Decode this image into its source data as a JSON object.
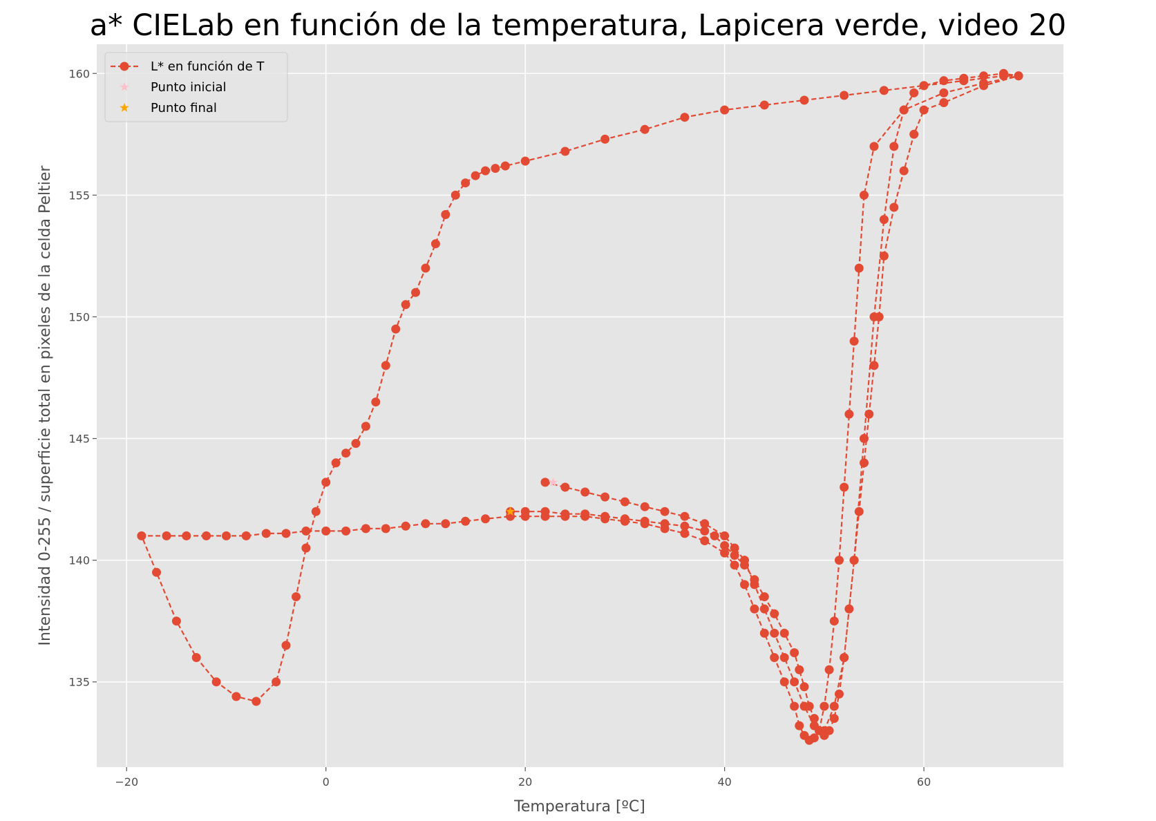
{
  "chart_data": {
    "type": "line",
    "title": "a* CIELab en función de la temperatura, Lapicera verde, video 20",
    "xlabel": "Temperatura [ºC]",
    "ylabel": "Intensidad 0-255 / superficie total en pixeles de la celda Peltier",
    "xlim": [
      -23,
      74
    ],
    "ylim": [
      131.5,
      161.2
    ],
    "xticks": [
      -20,
      0,
      20,
      40,
      60
    ],
    "yticks": [
      135,
      140,
      145,
      150,
      155,
      160
    ],
    "xtick_labels": [
      "−20",
      "0",
      "20",
      "40",
      "60"
    ],
    "ytick_labels": [
      "135",
      "140",
      "145",
      "150",
      "155",
      "160"
    ],
    "grid": true,
    "legend_position": "upper-left",
    "series": [
      {
        "name": "L* en función de T",
        "color": "#e24a33",
        "style": "dashed line with circle markers",
        "x": [
          22,
          24,
          26,
          28,
          30,
          32,
          34,
          36,
          38,
          40,
          41,
          42,
          43,
          44,
          45,
          46,
          47,
          48,
          49,
          50,
          51,
          52,
          53,
          54,
          55,
          56,
          57,
          58,
          59,
          60,
          62,
          64,
          66,
          68,
          69.5,
          66,
          62,
          58,
          55,
          54,
          53.5,
          53,
          52.5,
          52,
          51.5,
          51,
          50.5,
          50,
          49.5,
          49,
          48.5,
          48,
          47.5,
          47,
          46,
          45,
          44,
          43,
          42,
          41,
          40,
          38,
          36,
          34,
          32,
          30,
          28,
          26,
          24,
          22,
          20,
          18.5,
          16,
          14,
          12,
          10,
          8,
          6,
          4,
          2,
          0,
          -2,
          -4,
          -6,
          -8,
          -10,
          -12,
          -14,
          -16,
          -18.5,
          -17,
          -15,
          -13,
          -11,
          -9,
          -7,
          -5,
          -4,
          -3,
          -2,
          -1,
          0,
          1,
          2,
          3,
          4,
          5,
          6,
          7,
          8,
          9,
          10,
          11,
          12,
          13,
          14,
          15,
          16,
          17,
          18,
          20,
          24,
          28,
          32,
          36,
          40,
          44,
          48,
          52,
          56,
          60,
          64,
          68,
          69.5,
          66,
          62,
          60,
          59,
          58,
          57,
          56,
          55.5,
          55,
          54.5,
          54,
          53.5,
          53,
          52.5,
          52,
          51.5,
          51,
          50.5,
          50,
          49.5,
          49,
          48.5,
          48,
          47.5,
          47,
          46,
          45,
          44,
          43,
          42,
          41,
          40,
          39,
          38,
          36,
          34,
          32,
          30,
          28,
          26,
          24,
          22,
          20,
          18.5
        ],
        "y": [
          143.2,
          143.0,
          142.8,
          142.6,
          142.4,
          142.2,
          142.0,
          141.8,
          141.5,
          141.0,
          140.5,
          140.0,
          139.0,
          138.0,
          137.0,
          136.0,
          135.0,
          134.0,
          133.2,
          133.0,
          134.0,
          136.0,
          140.0,
          145.0,
          150.0,
          154.0,
          157.0,
          158.5,
          159.2,
          159.5,
          159.7,
          159.8,
          159.9,
          160.0,
          159.9,
          159.6,
          159.2,
          158.5,
          157.0,
          155.0,
          152.0,
          149.0,
          146.0,
          143.0,
          140.0,
          137.5,
          135.5,
          134.0,
          133.0,
          132.7,
          132.6,
          132.8,
          133.2,
          134.0,
          135.0,
          136.0,
          137.0,
          138.0,
          139.0,
          139.8,
          140.3,
          140.8,
          141.1,
          141.3,
          141.5,
          141.6,
          141.7,
          141.8,
          141.8,
          141.8,
          141.8,
          141.8,
          141.7,
          141.6,
          141.5,
          141.5,
          141.4,
          141.3,
          141.3,
          141.2,
          141.2,
          141.2,
          141.1,
          141.1,
          141.0,
          141.0,
          141.0,
          141.0,
          141.0,
          141.0,
          139.5,
          137.5,
          136.0,
          135.0,
          134.4,
          134.2,
          135.0,
          136.5,
          138.5,
          140.5,
          142.0,
          143.2,
          144.0,
          144.4,
          144.8,
          145.5,
          146.5,
          148.0,
          149.5,
          150.5,
          151.0,
          152.0,
          153.0,
          154.2,
          155.0,
          155.5,
          155.8,
          156.0,
          156.1,
          156.2,
          156.4,
          156.8,
          157.3,
          157.7,
          158.2,
          158.5,
          158.7,
          158.9,
          159.1,
          159.3,
          159.5,
          159.7,
          159.9,
          159.9,
          159.5,
          158.8,
          158.5,
          157.5,
          156.0,
          154.5,
          152.5,
          150.0,
          148.0,
          146.0,
          144.0,
          142.0,
          140.0,
          138.0,
          136.0,
          134.5,
          133.5,
          133.0,
          132.8,
          133.0,
          133.5,
          134.0,
          134.8,
          135.5,
          136.2,
          137.0,
          137.8,
          138.5,
          139.2,
          139.8,
          140.2,
          140.6,
          141.0,
          141.2,
          141.4,
          141.5,
          141.6,
          141.7,
          141.8,
          141.9,
          141.9,
          142.0,
          142.0,
          142.0
        ]
      },
      {
        "name": "Punto inicial",
        "color": "#ffc0cb",
        "style": "star marker",
        "x": [
          22.8
        ],
        "y": [
          143.2
        ]
      },
      {
        "name": "Punto final",
        "color": "#ffa500",
        "style": "star marker",
        "x": [
          18.5
        ],
        "y": [
          142.0
        ]
      }
    ]
  }
}
